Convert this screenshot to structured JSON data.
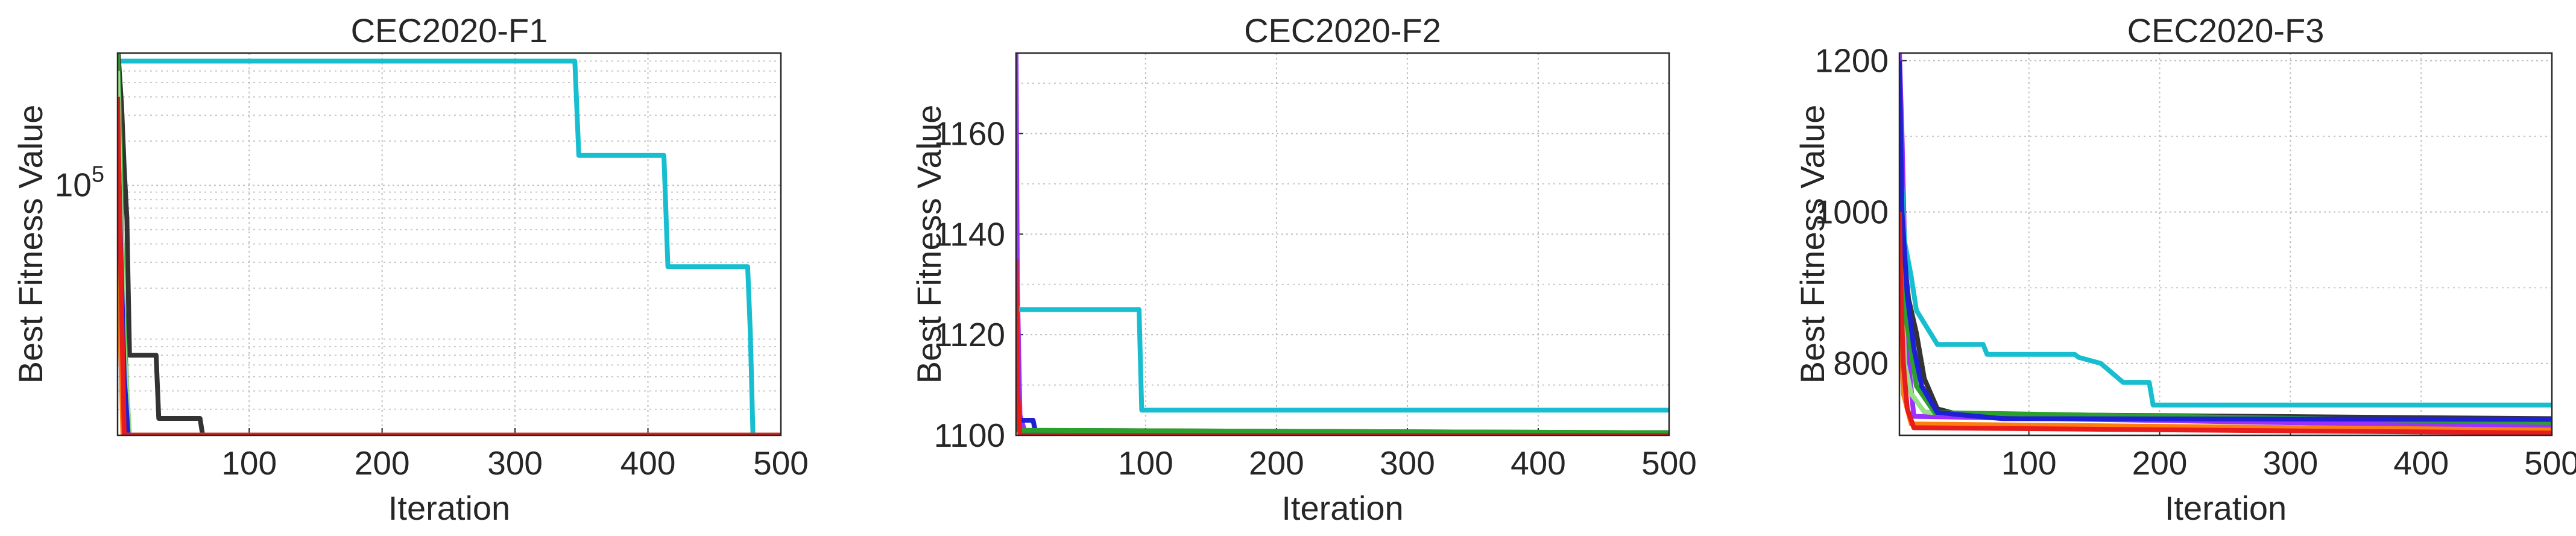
{
  "chart_data": [
    {
      "type": "line",
      "title": "CEC2020-F1",
      "xlabel": "Iteration",
      "ylabel": "Best Fitness Value",
      "xlim": [
        1,
        500
      ],
      "ylim_log10": [
        3.3,
        5.9
      ],
      "yscale": "log",
      "grid": true,
      "xticks": [
        100,
        200,
        300,
        400,
        500
      ],
      "yticks": [
        {
          "value": 100000,
          "base": "10",
          "exp": "5"
        }
      ],
      "series": [
        {
          "color": "#17becf",
          "points": [
            [
              1,
              700000
            ],
            [
              345,
              700000
            ],
            [
              348,
              160000
            ],
            [
              412,
              160000
            ],
            [
              415,
              28000
            ],
            [
              475,
              28000
            ],
            [
              477,
              10000
            ],
            [
              479,
              2000
            ],
            [
              500,
              2000
            ]
          ]
        },
        {
          "color": "#333333",
          "points": [
            [
              1,
              900000
            ],
            [
              4,
              350000
            ],
            [
              6,
              130000
            ],
            [
              8,
              60000
            ],
            [
              10,
              7000
            ],
            [
              30,
              7000
            ],
            [
              32,
              2600
            ],
            [
              63,
              2600
            ],
            [
              65,
              2000
            ],
            [
              500,
              2000
            ]
          ]
        },
        {
          "color": "#2ca02c",
          "points": [
            [
              1,
              800000
            ],
            [
              3,
              200000
            ],
            [
              5,
              20000
            ],
            [
              8,
              4000
            ],
            [
              10,
              2000
            ],
            [
              500,
              2000
            ]
          ]
        },
        {
          "color": "#98df8a",
          "points": [
            [
              1,
              600000
            ],
            [
              3,
              100000
            ],
            [
              6,
              8000
            ],
            [
              10,
              2000
            ],
            [
              500,
              2000
            ]
          ]
        },
        {
          "color": "#1f1fd6",
          "points": [
            [
              1,
              300000
            ],
            [
              3,
              50000
            ],
            [
              6,
              5000
            ],
            [
              9,
              2000
            ],
            [
              500,
              2000
            ]
          ]
        },
        {
          "color": "#ff7f0e",
          "points": [
            [
              1,
              100000
            ],
            [
              3,
              10000
            ],
            [
              5,
              2000
            ],
            [
              500,
              2000
            ]
          ]
        },
        {
          "color": "#e81c1c",
          "points": [
            [
              1,
              400000
            ],
            [
              2,
              120000
            ],
            [
              4,
              15000
            ],
            [
              6,
              2000
            ],
            [
              500,
              2000
            ]
          ]
        }
      ]
    },
    {
      "type": "line",
      "title": "CEC2020-F2",
      "xlabel": "Iteration",
      "ylabel": "Best Fitness Value",
      "xlim": [
        1,
        500
      ],
      "ylim": [
        1100,
        1176
      ],
      "grid": true,
      "xticks": [
        100,
        200,
        300,
        400,
        500
      ],
      "yticks": [
        1100,
        1120,
        1140,
        1160
      ],
      "series": [
        {
          "color": "#9b30ff",
          "points": [
            [
              1,
              1176
            ],
            [
              2,
              1130
            ],
            [
              4,
              1104
            ],
            [
              8,
              1100.5
            ],
            [
              500,
              1100.5
            ]
          ]
        },
        {
          "color": "#17becf",
          "points": [
            [
              1,
              1126
            ],
            [
              3,
              1125
            ],
            [
              95,
              1125
            ],
            [
              97,
              1105
            ],
            [
              500,
              1105
            ]
          ]
        },
        {
          "color": "#1f1fd6",
          "points": [
            [
              1,
              1118
            ],
            [
              3,
              1103
            ],
            [
              14,
              1103
            ],
            [
              16,
              1100.5
            ],
            [
              500,
              1100.5
            ]
          ]
        },
        {
          "color": "#333333",
          "points": [
            [
              1,
              1110
            ],
            [
              3,
              1101
            ],
            [
              500,
              1100.5
            ]
          ]
        },
        {
          "color": "#2ca02c",
          "points": [
            [
              1,
              1115
            ],
            [
              3,
              1101
            ],
            [
              500,
              1100.5
            ]
          ]
        },
        {
          "color": "#e81c1c",
          "points": [
            [
              1,
              1135
            ],
            [
              2,
              1110
            ],
            [
              4,
              1100
            ],
            [
              500,
              1100
            ]
          ]
        }
      ]
    },
    {
      "type": "line",
      "title": "CEC2020-F3",
      "xlabel": "Iteration",
      "ylabel": "Best Fitness Value",
      "xlim": [
        1,
        500
      ],
      "ylim": [
        705,
        1210
      ],
      "grid": true,
      "xticks": [
        100,
        200,
        300,
        400,
        500
      ],
      "yticks": [
        800,
        1000,
        1200
      ],
      "series": [
        {
          "color": "#9b30ff",
          "points": [
            [
              1,
              1210
            ],
            [
              3,
              1100
            ],
            [
              5,
              950
            ],
            [
              8,
              800
            ],
            [
              12,
              730
            ],
            [
              500,
              716
            ]
          ]
        },
        {
          "color": "#17becf",
          "points": [
            [
              1,
              1100
            ],
            [
              5,
              960
            ],
            [
              10,
              915
            ],
            [
              14,
              870
            ],
            [
              30,
              825
            ],
            [
              65,
              825
            ],
            [
              68,
              812
            ],
            [
              135,
              812
            ],
            [
              138,
              808
            ],
            [
              155,
              800
            ],
            [
              172,
              775
            ],
            [
              192,
              775
            ],
            [
              195,
              745
            ],
            [
              500,
              745
            ]
          ]
        },
        {
          "color": "#98df8a",
          "points": [
            [
              1,
              1000
            ],
            [
              5,
              800
            ],
            [
              10,
              760
            ],
            [
              20,
              736
            ],
            [
              60,
              731
            ],
            [
              120,
              728
            ],
            [
              500,
              726
            ]
          ]
        },
        {
          "color": "#333333",
          "points": [
            [
              1,
              1050
            ],
            [
              4,
              950
            ],
            [
              8,
              885
            ],
            [
              14,
              840
            ],
            [
              20,
              780
            ],
            [
              30,
              740
            ],
            [
              45,
              733
            ],
            [
              500,
              727
            ]
          ]
        },
        {
          "color": "#2ca02c",
          "points": [
            [
              1,
              1000
            ],
            [
              6,
              860
            ],
            [
              14,
              770
            ],
            [
              28,
              735
            ],
            [
              500,
              722
            ]
          ]
        },
        {
          "color": "#1f1fd6",
          "points": [
            [
              1,
              1200
            ],
            [
              3,
              1000
            ],
            [
              7,
              890
            ],
            [
              12,
              820
            ],
            [
              18,
              770
            ],
            [
              30,
              735
            ],
            [
              80,
              727
            ],
            [
              500,
              726
            ]
          ]
        },
        {
          "color": "#ff7f0e",
          "points": [
            [
              1,
              900
            ],
            [
              4,
              760
            ],
            [
              10,
              720
            ],
            [
              500,
              712
            ]
          ]
        },
        {
          "color": "#e81c1c",
          "points": [
            [
              1,
              1000
            ],
            [
              2,
              900
            ],
            [
              4,
              800
            ],
            [
              7,
              740
            ],
            [
              12,
              715
            ],
            [
              500,
              708
            ]
          ]
        }
      ]
    }
  ]
}
